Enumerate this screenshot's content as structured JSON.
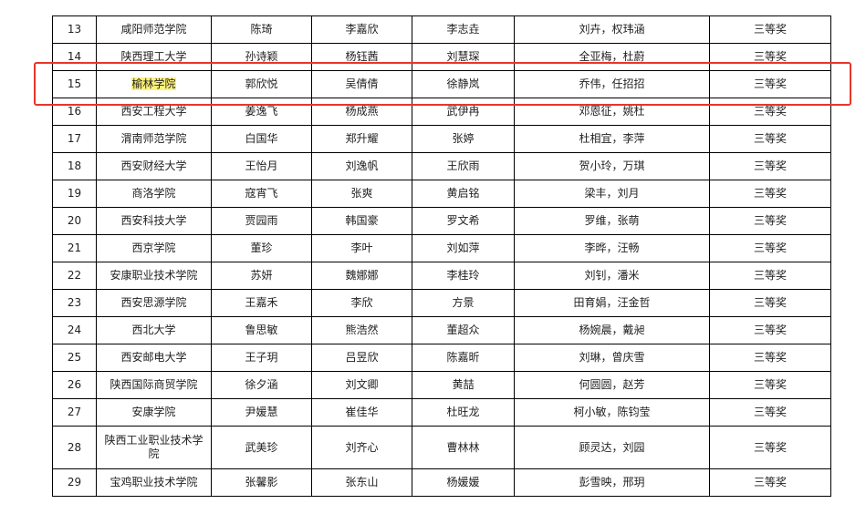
{
  "table": {
    "rows": [
      [
        13,
        "咸阳师范学院",
        "陈琦",
        "李嘉欣",
        "李志垚",
        "刘卉，权玮涵",
        "三等奖"
      ],
      [
        14,
        "陕西理工大学",
        "孙诗颖",
        "杨钰茜",
        "刘慧琛",
        "全亚梅，杜蔚",
        "三等奖"
      ],
      [
        15,
        "榆林学院",
        "郭欣悦",
        "吴倩倩",
        "徐静岚",
        "乔伟，任招招",
        "三等奖"
      ],
      [
        16,
        "西安工程大学",
        "姜逸飞",
        "杨成燕",
        "武伊冉",
        "邓恩征，姚杜",
        "三等奖"
      ],
      [
        17,
        "渭南师范学院",
        "白国华",
        "郑升耀",
        "张婷",
        "杜相宜，李萍",
        "三等奖"
      ],
      [
        18,
        "西安财经大学",
        "王怡月",
        "刘逸帆",
        "王欣雨",
        "贺小玲，万琪",
        "三等奖"
      ],
      [
        19,
        "商洛学院",
        "寇宵飞",
        "张爽",
        "黄启铭",
        "梁丰，刘月",
        "三等奖"
      ],
      [
        20,
        "西安科技大学",
        "贾园雨",
        "韩国豪",
        "罗文希",
        "罗维，张萌",
        "三等奖"
      ],
      [
        21,
        "西京学院",
        "董珍",
        "李叶",
        "刘如萍",
        "李晔，汪畅",
        "三等奖"
      ],
      [
        22,
        "安康职业技术学院",
        "苏妍",
        "魏娜娜",
        "李桂玲",
        "刘钊，潘米",
        "三等奖"
      ],
      [
        23,
        "西安思源学院",
        "王嘉禾",
        "李欣",
        "方景",
        "田育娟，汪金哲",
        "三等奖"
      ],
      [
        24,
        "西北大学",
        "鲁思敏",
        "熊浩然",
        "董超众",
        "杨婉晨，戴昶",
        "三等奖"
      ],
      [
        25,
        "西安邮电大学",
        "王子玥",
        "吕昱欣",
        "陈嘉昕",
        "刘琳，曾庆雪",
        "三等奖"
      ],
      [
        26,
        "陕西国际商贸学院",
        "徐夕涵",
        "刘文卿",
        "黄喆",
        "何圆圆，赵芳",
        "三等奖"
      ],
      [
        27,
        "安康学院",
        "尹媛慧",
        "崔佳华",
        "杜旺龙",
        "柯小敏，陈钧莹",
        "三等奖"
      ],
      [
        28,
        "陕西工业职业技术学院",
        "武美珍",
        "刘齐心",
        "曹林林",
        "顾灵达，刘园",
        "三等奖"
      ],
      [
        29,
        "宝鸡职业技术学院",
        "张馨影",
        "张东山",
        "杨媛媛",
        "彭雪映，邢玥",
        "三等奖"
      ]
    ]
  }
}
